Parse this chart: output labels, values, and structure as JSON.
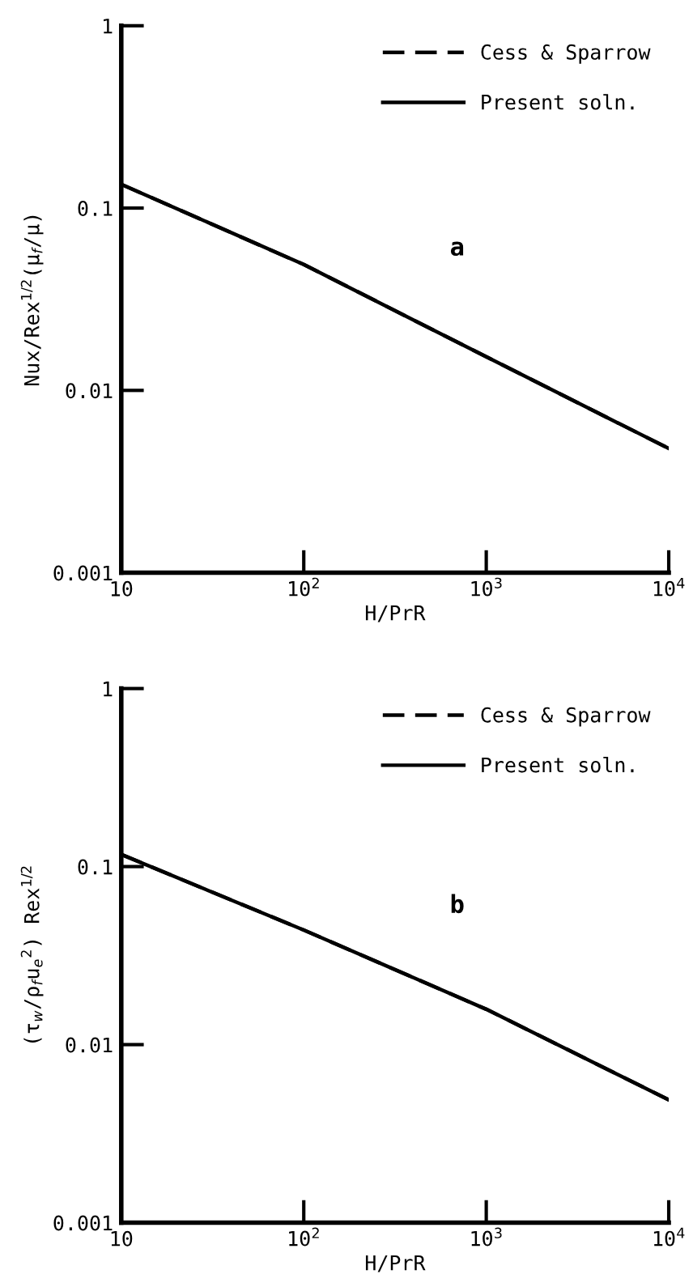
{
  "chart_data": [
    {
      "type": "line",
      "xlabel": "H/PrR",
      "ylabel": "Nux/Rex$^{1/2}$(μ$_{f}$/μ)",
      "annotations": [
        "a"
      ],
      "log": "xy",
      "legend": "top right",
      "grid": false,
      "x": [
        10,
        100,
        1000,
        10000
      ],
      "xlim": [
        10,
        10000
      ],
      "ylim": [
        0.001,
        1
      ],
      "xticks": [
        10,
        {
          "value": 100,
          "label": "10$^{2}$"
        },
        {
          "value": 1000,
          "label": "10$^{3}$"
        },
        {
          "value": 10000,
          "label": "10$^{4}$"
        }
      ],
      "yticks": [
        0.001,
        0.01,
        0.1,
        1
      ],
      "series": [
        {
          "name": "Cess & Sparrow",
          "color": "#000000",
          "line_style": "dashed",
          "values": [
            0.135,
            0.049,
            0.0153,
            0.0048
          ]
        },
        {
          "name": "Present soln.",
          "color": "#000000",
          "line_style": "solid",
          "values": [
            0.135,
            0.049,
            0.0153,
            0.0048
          ]
        }
      ]
    },
    {
      "type": "line",
      "xlabel": "H/PrR",
      "ylabel": "(τ$_{w}$/ρ$_{f}$u$_{e}$$^{2}$) Rex$^{1/2}$",
      "annotations": [
        "b"
      ],
      "log": "xy",
      "legend": "top right",
      "grid": false,
      "x": [
        10,
        100,
        1000,
        10000
      ],
      "xlim": [
        10,
        10000
      ],
      "ylim": [
        0.001,
        1
      ],
      "xticks": [
        10,
        {
          "value": 100,
          "label": "10$^{2}$"
        },
        {
          "value": 1000,
          "label": "10$^{3}$"
        },
        {
          "value": 10000,
          "label": "10$^{4}$"
        }
      ],
      "yticks": [
        0.001,
        0.01,
        0.1,
        1
      ],
      "series": [
        {
          "name": "Cess & Sparrow",
          "color": "#000000",
          "line_style": "dashed",
          "values": [
            0.117,
            0.044,
            0.0158,
            0.0049
          ]
        },
        {
          "name": "Present soln.",
          "color": "#000000",
          "line_style": "solid",
          "values": [
            0.117,
            0.044,
            0.0158,
            0.0049
          ]
        }
      ]
    }
  ]
}
